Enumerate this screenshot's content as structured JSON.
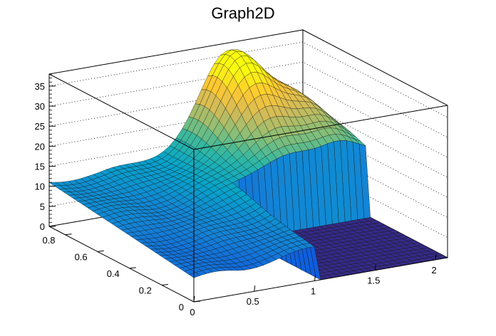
{
  "chart_data": {
    "type": "surface",
    "title": "Graph2D",
    "xlabel": "",
    "ylabel": "",
    "zlabel": "",
    "xlim": [
      0,
      2.1
    ],
    "ylim": [
      0,
      0.9
    ],
    "zlim": [
      0,
      38
    ],
    "x_ticks": [
      "0",
      "0.5",
      "1",
      "1.5",
      "2"
    ],
    "y_ticks": [
      "0",
      "0.2",
      "0.4",
      "0.6",
      "0.8"
    ],
    "z_ticks": [
      "0",
      "5",
      "10",
      "15",
      "20",
      "25",
      "30",
      "35"
    ],
    "grid": true,
    "colormap": [
      "#352a87",
      "#0f5cdd",
      "#1481d6",
      "#06a4ca",
      "#2eb7a4",
      "#87bf77",
      "#d1bb59",
      "#fec832",
      "#f9fb0e"
    ],
    "surface_description": "z rises from about 7 at low x to a peak near 34 around x=1.5, y=0.85; region x>1, y<0.5 drops to 0"
  }
}
